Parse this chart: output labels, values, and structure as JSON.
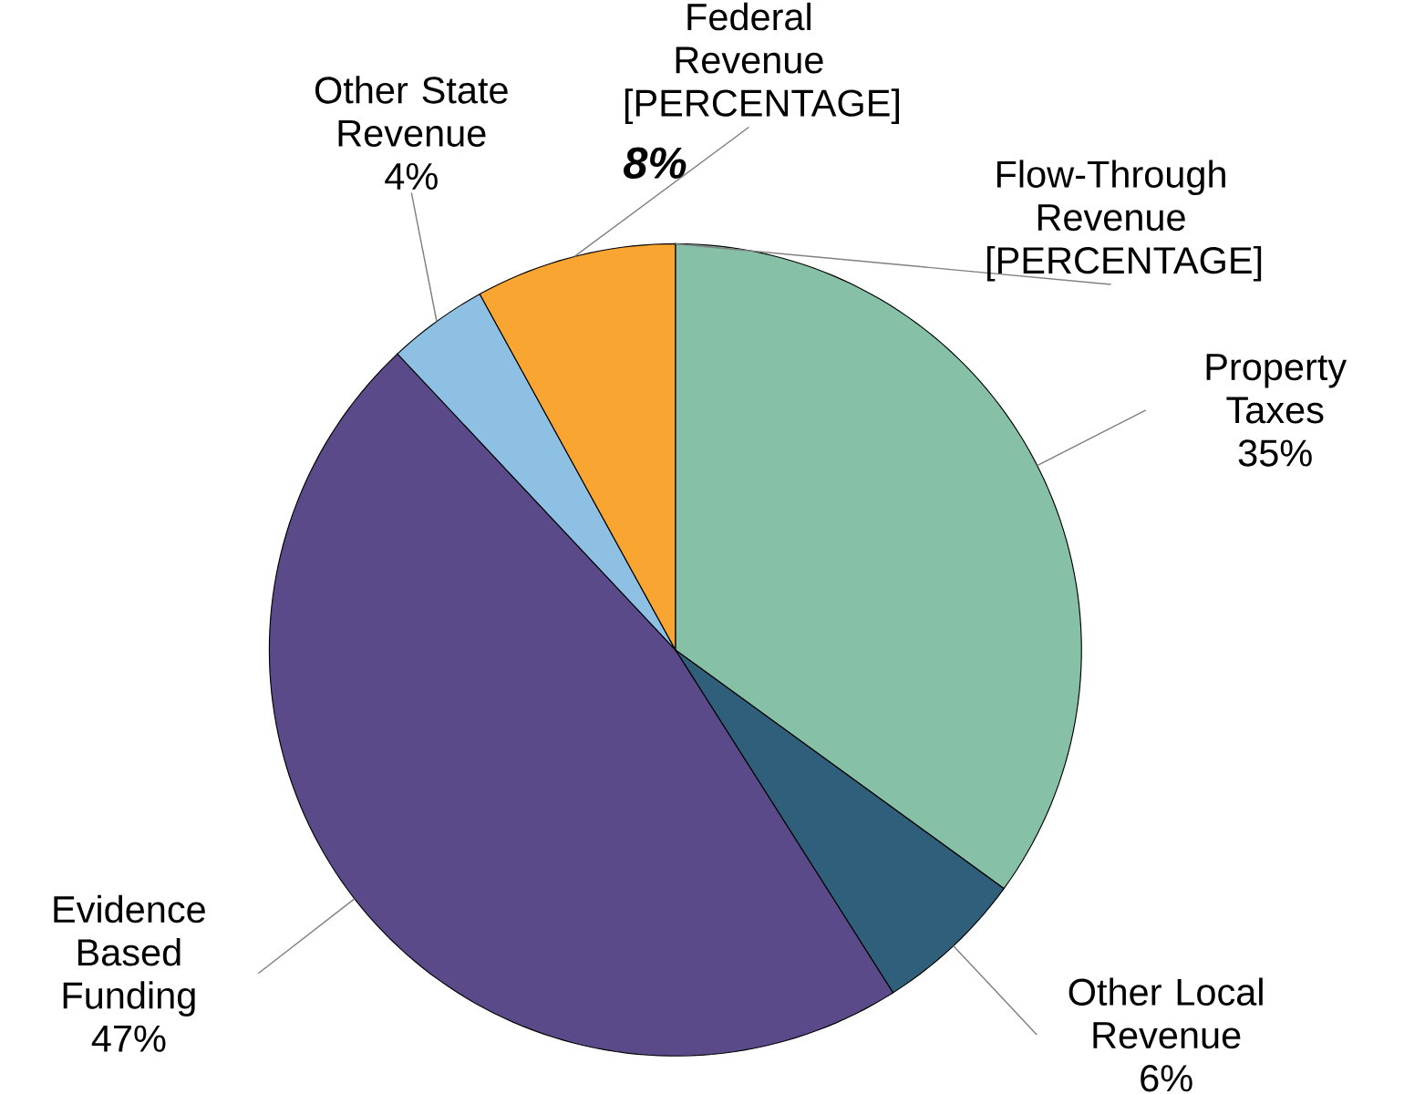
{
  "chart_data": {
    "type": "pie",
    "categories": [
      "Property Taxes",
      "Other Local Revenue",
      "Evidence Based Funding",
      "Other State Revenue",
      "Federal Revenue",
      "Flow-Through Revenue"
    ],
    "values": [
      35,
      6,
      47,
      4,
      8,
      0
    ],
    "value_labels": [
      "35%",
      "6%",
      "47%",
      "4%",
      "[PERCENTAGE]",
      "[PERCENTAGE]"
    ],
    "colors": [
      "#86c0a6",
      "#2f5f7a",
      "#5a4a8a",
      "#8ec0e4",
      "#f8a532",
      "#b0d0c0"
    ],
    "annotations": [
      "8%"
    ]
  }
}
